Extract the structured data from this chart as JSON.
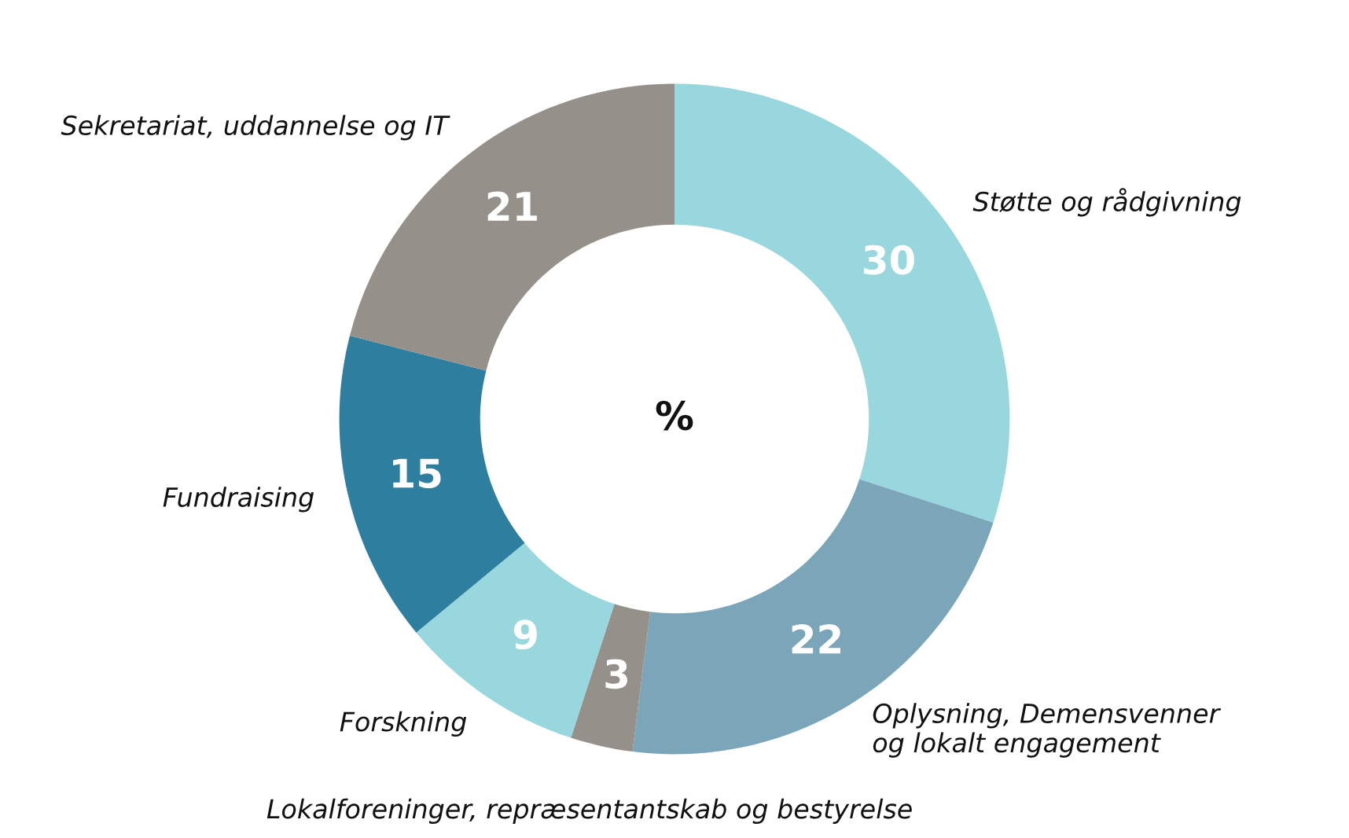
{
  "chart_data": {
    "type": "donut",
    "categories": [
      "Støtte og rådgivning",
      "Oplysning, Demensvenner\nog lokalt engagement",
      "Lokalforeninger, repræsentantskab og bestyrelse",
      "Forskning",
      "Fundraising",
      "Sekretariat, uddannelse og IT"
    ],
    "values": [
      30,
      22,
      3,
      9,
      15,
      21
    ],
    "colors": [
      "#97d7dd",
      "#7ba5b8",
      "#959089",
      "#97d7dd",
      "#2e7f9f",
      "#959089"
    ],
    "data_labels": true,
    "annotations": [
      "%"
    ]
  }
}
